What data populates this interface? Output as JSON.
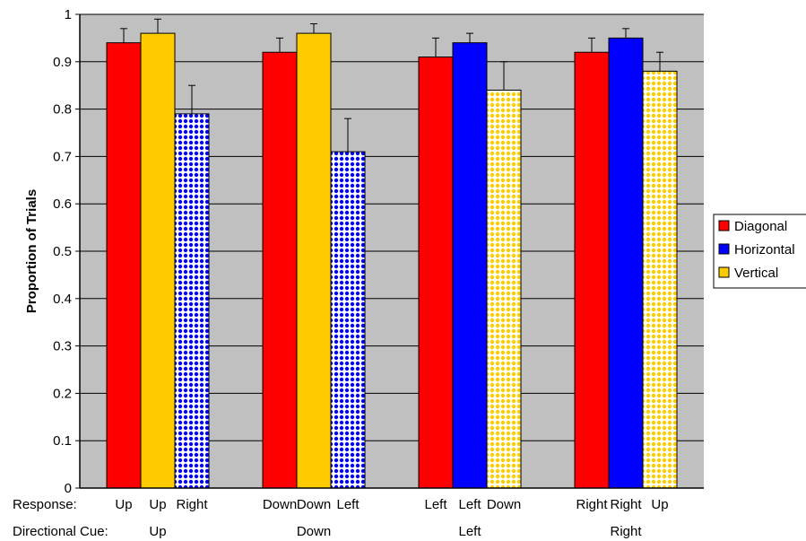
{
  "chart_data": {
    "type": "bar",
    "ylabel": "Proportion of Trials",
    "ylim": [
      0,
      1
    ],
    "yticks": [
      "0",
      "0.1",
      "0.2",
      "0.3",
      "0.4",
      "0.5",
      "0.6",
      "0.7",
      "0.8",
      "0.9",
      "1"
    ],
    "grid": true,
    "legend_position": "right",
    "row_labels": {
      "response": "Response:",
      "cue": "Directional Cue:"
    },
    "series_legend": [
      {
        "name": "Diagonal",
        "color": "#ff0000"
      },
      {
        "name": "Horizontal",
        "color": "#0000ff"
      },
      {
        "name": "Vertical",
        "color": "#ffcc00"
      }
    ],
    "groups": [
      {
        "cue": "Up",
        "bars": [
          {
            "response": "Up",
            "series": "Diagonal",
            "value": 0.94,
            "error": 0.03,
            "pattern": "solid",
            "color": "#ff0000"
          },
          {
            "response": "Up",
            "series": "Vertical",
            "value": 0.96,
            "error": 0.03,
            "pattern": "solid",
            "color": "#ffcc00"
          },
          {
            "response": "Right",
            "series": "Horizontal",
            "value": 0.79,
            "error": 0.06,
            "pattern": "dotted",
            "color": "#0000ff"
          }
        ]
      },
      {
        "cue": "Down",
        "bars": [
          {
            "response": "Down",
            "series": "Diagonal",
            "value": 0.92,
            "error": 0.03,
            "pattern": "solid",
            "color": "#ff0000"
          },
          {
            "response": "Down",
            "series": "Vertical",
            "value": 0.96,
            "error": 0.02,
            "pattern": "solid",
            "color": "#ffcc00"
          },
          {
            "response": "Left",
            "series": "Horizontal",
            "value": 0.71,
            "error": 0.07,
            "pattern": "dotted",
            "color": "#0000ff"
          }
        ]
      },
      {
        "cue": "Left",
        "bars": [
          {
            "response": "Left",
            "series": "Diagonal",
            "value": 0.91,
            "error": 0.04,
            "pattern": "solid",
            "color": "#ff0000"
          },
          {
            "response": "Left",
            "series": "Horizontal",
            "value": 0.94,
            "error": 0.02,
            "pattern": "solid",
            "color": "#0000ff"
          },
          {
            "response": "Down",
            "series": "Vertical",
            "value": 0.84,
            "error": 0.06,
            "pattern": "dotted",
            "color": "#ffcc00"
          }
        ]
      },
      {
        "cue": "Right",
        "bars": [
          {
            "response": "Right",
            "series": "Diagonal",
            "value": 0.92,
            "error": 0.03,
            "pattern": "solid",
            "color": "#ff0000"
          },
          {
            "response": "Right",
            "series": "Horizontal",
            "value": 0.95,
            "error": 0.02,
            "pattern": "solid",
            "color": "#0000ff"
          },
          {
            "response": "Up",
            "series": "Vertical",
            "value": 0.88,
            "error": 0.04,
            "pattern": "dotted",
            "color": "#ffcc00"
          }
        ]
      }
    ]
  }
}
